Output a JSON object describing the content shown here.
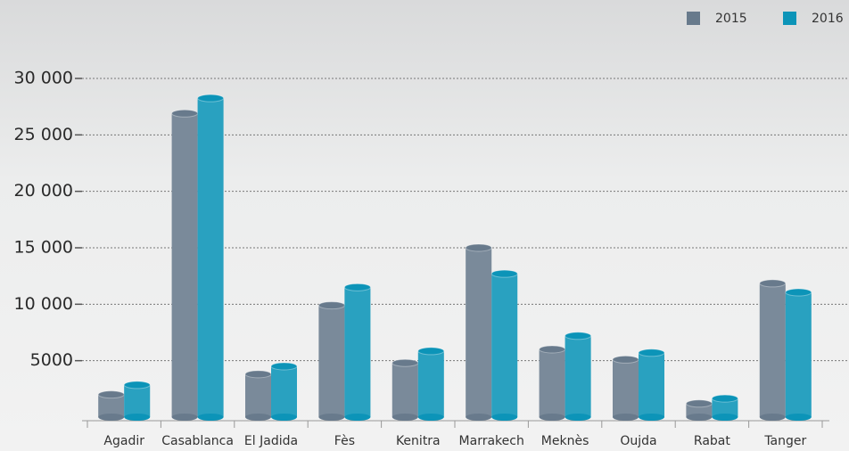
{
  "chart_data": {
    "type": "bar",
    "categories": [
      "Agadir",
      "Casablanca",
      "El Jadida",
      "Fès",
      "Kenitra",
      "Marrakech",
      "Meknès",
      "Oujda",
      "Rabat",
      "Tanger"
    ],
    "series": [
      {
        "name": "2015",
        "color": "#687a8c",
        "values": [
          2000,
          26900,
          3800,
          9900,
          4800,
          15000,
          6000,
          5100,
          1200,
          11850
        ]
      },
      {
        "name": "2016",
        "color": "#0c94b8",
        "values": [
          2850,
          28250,
          4500,
          11500,
          5850,
          12700,
          7200,
          5700,
          1650,
          11050
        ]
      }
    ],
    "ylim": [
      0,
      30000
    ],
    "yticks": [
      {
        "value": 5000,
        "label": "5000"
      },
      {
        "value": 10000,
        "label": "10 000"
      },
      {
        "value": 15000,
        "label": "15 000"
      },
      {
        "value": 20000,
        "label": "20 000"
      },
      {
        "value": 25000,
        "label": "25 000"
      },
      {
        "value": 30000,
        "label": "30 000"
      }
    ],
    "grid": true,
    "legend": "top-right"
  }
}
